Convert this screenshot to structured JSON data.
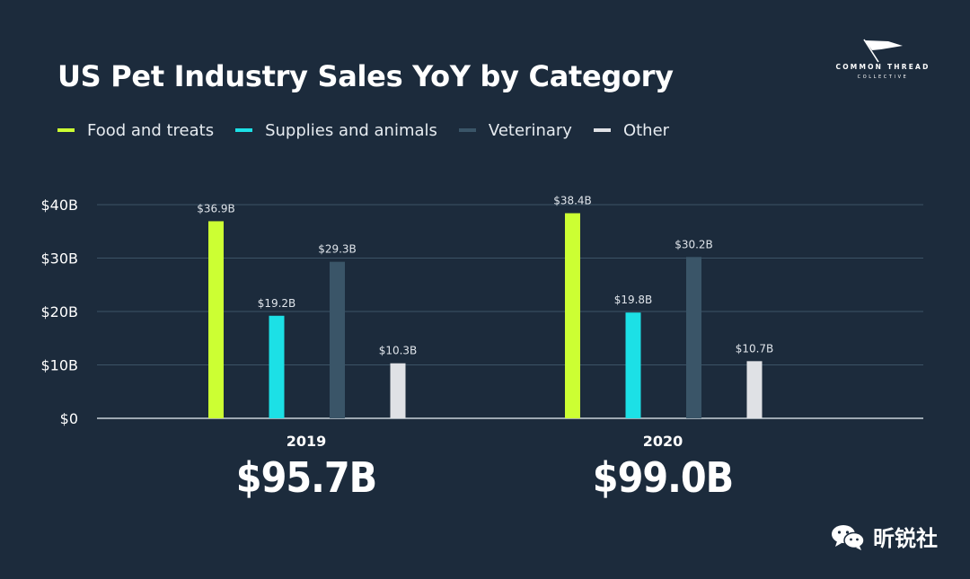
{
  "title": "US Pet Industry Sales YoY by Category",
  "logo": {
    "name": "COMMON THREAD",
    "sub": "COLLECTIVE"
  },
  "legend": [
    {
      "label": "Food and treats",
      "color": "#ccff33"
    },
    {
      "label": "Supplies and animals",
      "color": "#1ce0e6"
    },
    {
      "label": "Veterinary",
      "color": "#3a5568"
    },
    {
      "label": "Other",
      "color": "#dfe1e5"
    }
  ],
  "groups": [
    {
      "year": "2019",
      "total": "$95.7B"
    },
    {
      "year": "2020",
      "total": "$99.0B"
    }
  ],
  "watermark": {
    "text": "昕锐社",
    "icon": "wechat-icon"
  },
  "chart_data": {
    "type": "bar",
    "title": "US Pet Industry Sales YoY by Category",
    "categories": [
      "2019",
      "2020"
    ],
    "series": [
      {
        "name": "Food and treats",
        "values": [
          36.9,
          38.4
        ],
        "labels": [
          "$36.9B",
          "$38.4B"
        ],
        "color": "#ccff33"
      },
      {
        "name": "Supplies and animals",
        "values": [
          19.2,
          19.8
        ],
        "labels": [
          "$19.2B",
          "$19.8B"
        ],
        "color": "#1ce0e6"
      },
      {
        "name": "Veterinary",
        "values": [
          29.3,
          30.2
        ],
        "labels": [
          "$29.3B",
          "$30.2B"
        ],
        "color": "#3a5568"
      },
      {
        "name": "Other",
        "values": [
          10.3,
          10.7
        ],
        "labels": [
          "$10.3B",
          "$10.7B"
        ],
        "color": "#dfe1e5"
      }
    ],
    "yticks": [
      0,
      10,
      20,
      30,
      40
    ],
    "ytick_labels": [
      "$0",
      "$10B",
      "$20B",
      "$30B",
      "$40B"
    ],
    "ylim": [
      0,
      40
    ],
    "grid": true,
    "legend_position": "top-left"
  }
}
